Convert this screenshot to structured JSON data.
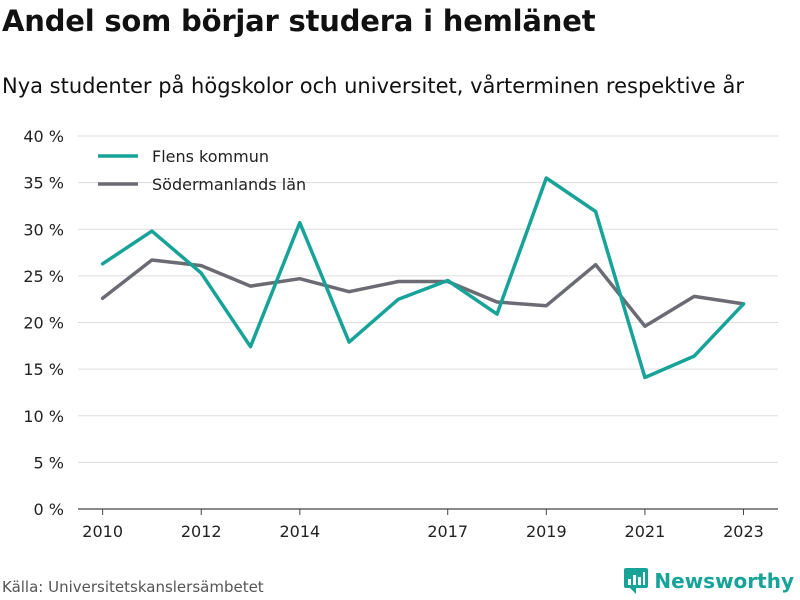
{
  "title": "Andel som börjar studera i hemlänet",
  "subtitle": "Nya studenter på högskolor och universitet, vårterminen respektive år",
  "source": "Källa: Universitetskanslersämbetet",
  "brand": "Newsworthy",
  "chart_data": {
    "type": "line",
    "x": [
      2010,
      2011,
      2012,
      2013,
      2014,
      2015,
      2016,
      2017,
      2018,
      2019,
      2020,
      2021,
      2022,
      2023
    ],
    "x_tick_labels": [
      "2010",
      "2012",
      "2014",
      "2017",
      "2019",
      "2021",
      "2023"
    ],
    "x_tick_values": [
      2010,
      2012,
      2014,
      2017,
      2019,
      2021,
      2023
    ],
    "y_ticks": [
      0,
      5,
      10,
      15,
      20,
      25,
      30,
      35,
      40
    ],
    "y_tick_labels": [
      "0 %",
      "5 %",
      "10 %",
      "15 %",
      "20 %",
      "25 %",
      "30 %",
      "35 %",
      "40 %"
    ],
    "ylim": [
      0,
      40
    ],
    "xlim": [
      2009.5,
      2023.7
    ],
    "grid": true,
    "legend_position": "top-left",
    "series": [
      {
        "name": "Flens kommun",
        "color": "#17a398",
        "values": [
          26.3,
          29.8,
          25.3,
          17.4,
          30.7,
          17.9,
          22.5,
          24.5,
          20.9,
          35.5,
          31.9,
          14.1,
          16.4,
          22.0
        ]
      },
      {
        "name": "Södermanlands län",
        "color": "#6b6b73",
        "values": [
          22.6,
          26.7,
          26.1,
          23.9,
          24.7,
          23.3,
          24.4,
          24.4,
          22.2,
          21.8,
          26.2,
          19.6,
          22.8,
          22.0
        ]
      }
    ]
  }
}
